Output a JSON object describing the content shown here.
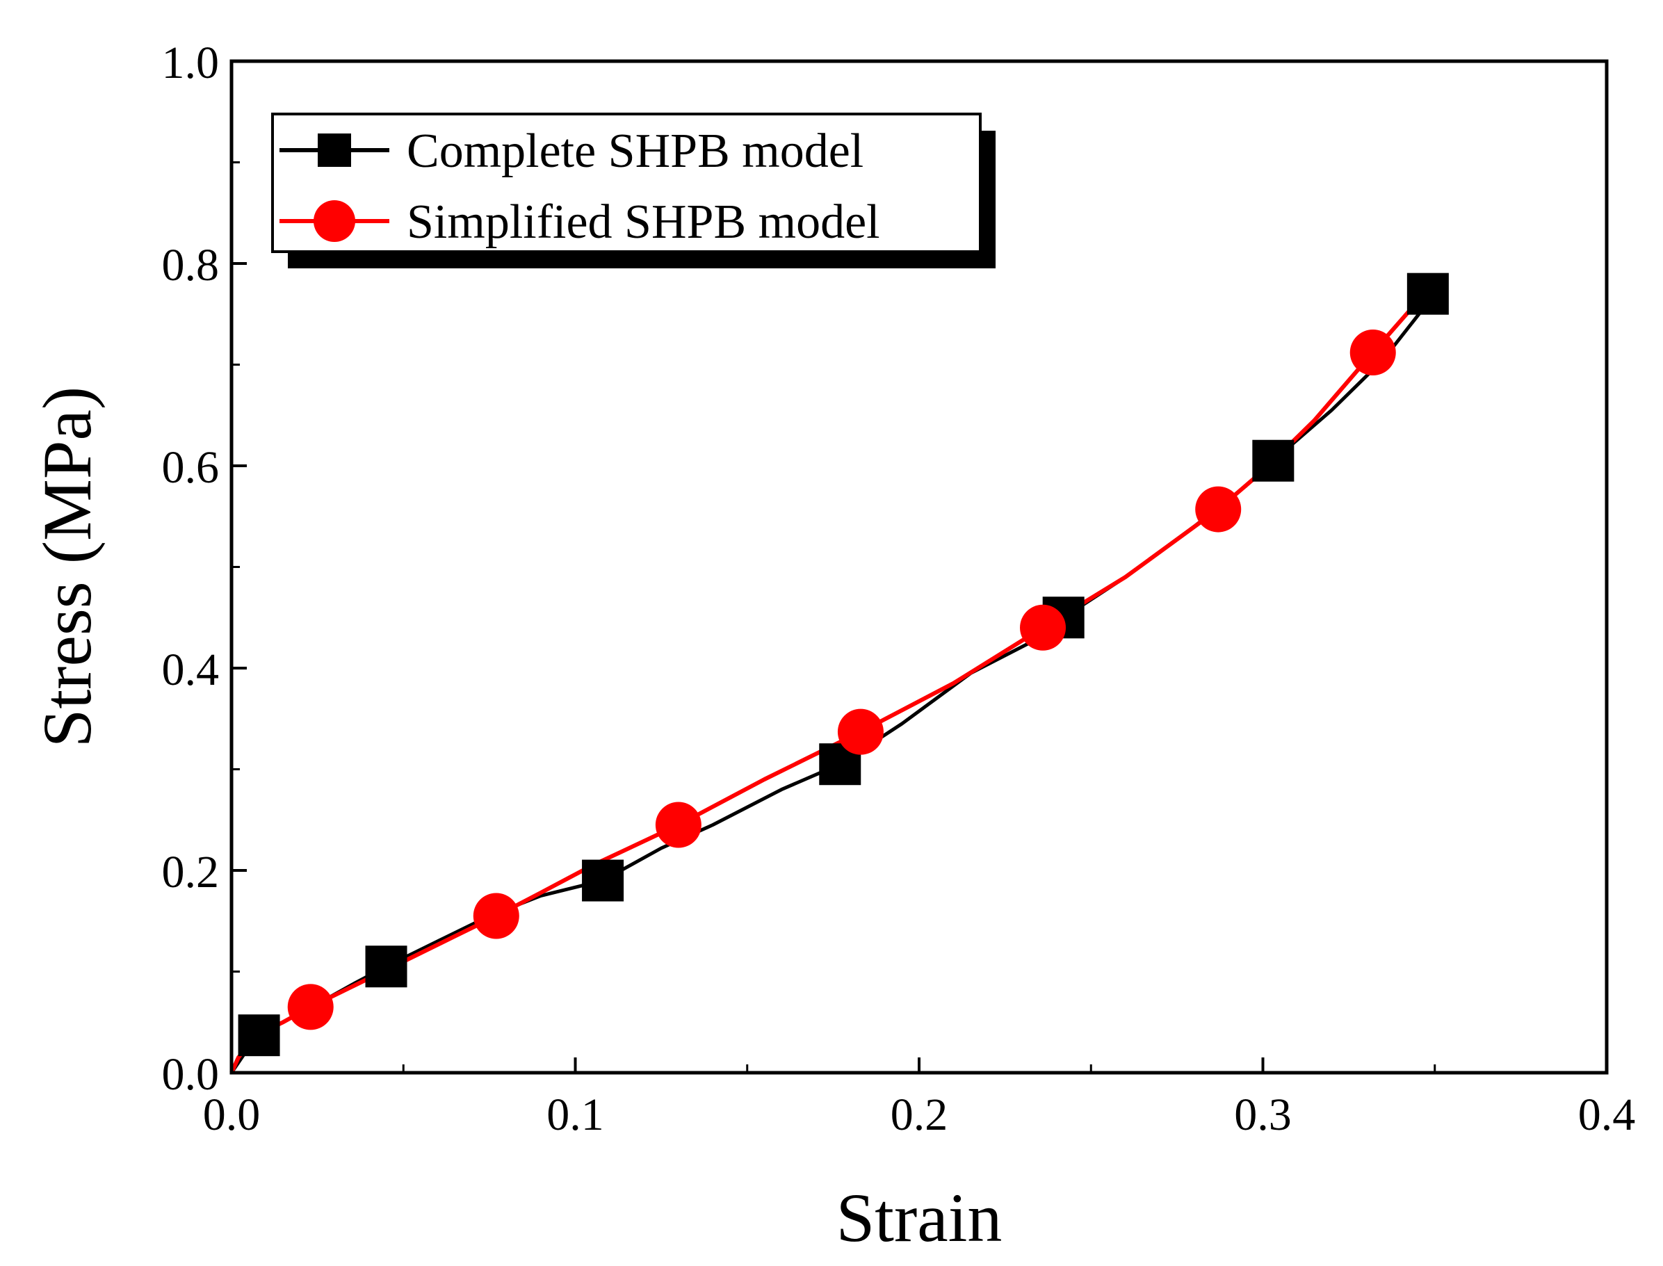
{
  "chart_data": {
    "type": "line",
    "title": "",
    "xlabel": "Strain",
    "ylabel": "Stress (MPa)",
    "xlim": [
      0.0,
      0.4
    ],
    "ylim": [
      0.0,
      1.0
    ],
    "xticks": [
      "0.0",
      "0.1",
      "0.2",
      "0.3",
      "0.4"
    ],
    "yticks": [
      "0.0",
      "0.2",
      "0.4",
      "0.6",
      "0.8",
      "1.0"
    ],
    "grid": false,
    "legend_position": "top-left",
    "series": [
      {
        "name": "Complete SHPB model",
        "color": "#000000",
        "marker": "square",
        "line_x": [
          0.0,
          0.002,
          0.005,
          0.008,
          0.015,
          0.025,
          0.035,
          0.045,
          0.06,
          0.075,
          0.09,
          0.108,
          0.125,
          0.14,
          0.16,
          0.177,
          0.195,
          0.215,
          0.235,
          0.242,
          0.26,
          0.28,
          0.295,
          0.303,
          0.32,
          0.335,
          0.35
        ],
        "line_y": [
          0.0,
          0.01,
          0.025,
          0.037,
          0.05,
          0.068,
          0.087,
          0.105,
          0.13,
          0.155,
          0.175,
          0.19,
          0.222,
          0.245,
          0.28,
          0.305,
          0.345,
          0.395,
          0.43,
          0.45,
          0.49,
          0.54,
          0.58,
          0.605,
          0.655,
          0.705,
          0.77
        ],
        "marker_x": [
          0.008,
          0.045,
          0.108,
          0.177,
          0.242,
          0.303,
          0.348
        ],
        "marker_y": [
          0.037,
          0.105,
          0.19,
          0.305,
          0.45,
          0.605,
          0.77
        ]
      },
      {
        "name": "Simplified SHPB model",
        "color": "#ff0000",
        "marker": "circle",
        "line_x": [
          0.0,
          0.002,
          0.005,
          0.01,
          0.015,
          0.023,
          0.035,
          0.05,
          0.065,
          0.077,
          0.09,
          0.105,
          0.13,
          0.155,
          0.183,
          0.21,
          0.236,
          0.26,
          0.287,
          0.3,
          0.315,
          0.332,
          0.35
        ],
        "line_y": [
          0.0,
          0.015,
          0.028,
          0.042,
          0.05,
          0.065,
          0.085,
          0.11,
          0.135,
          0.155,
          0.178,
          0.205,
          0.245,
          0.29,
          0.337,
          0.385,
          0.44,
          0.49,
          0.557,
          0.595,
          0.645,
          0.712,
          0.782
        ],
        "marker_x": [
          0.023,
          0.077,
          0.13,
          0.183,
          0.236,
          0.287,
          0.332
        ],
        "marker_y": [
          0.065,
          0.155,
          0.245,
          0.337,
          0.44,
          0.557,
          0.712
        ]
      }
    ]
  }
}
